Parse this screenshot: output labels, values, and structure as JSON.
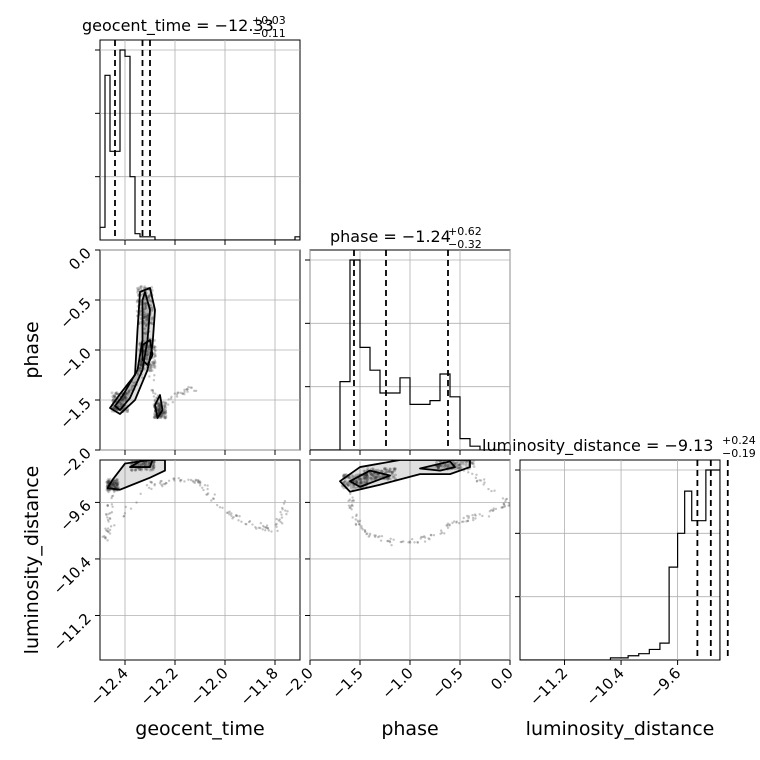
{
  "chart_data": {
    "type": "corner",
    "parameters": [
      "geocent_time",
      "phase",
      "luminosity_distance"
    ],
    "titles": [
      {
        "label": "geocent_time = −12.33",
        "sup": "+0.03",
        "sub": "−0.11"
      },
      {
        "label": "phase = −1.24",
        "sup": "+0.62",
        "sub": "−0.32"
      },
      {
        "label": "luminosity_distance = −9.13",
        "sup": "+0.24",
        "sub": "−0.19"
      }
    ],
    "axis_labels": {
      "x": [
        "geocent_time",
        "phase",
        "luminosity_distance"
      ],
      "y": [
        "phase",
        "luminosity_distance"
      ]
    },
    "ranges": {
      "geocent_time": [
        -12.5,
        -11.7
      ],
      "phase": [
        -2.0,
        0.0
      ],
      "luminosity_distance": [
        -11.83,
        -9.0
      ]
    },
    "ticks": {
      "geocent_time": [
        {
          "v": -12.4,
          "label": "−12.4"
        },
        {
          "v": -12.2,
          "label": "−12.2"
        },
        {
          "v": -12.0,
          "label": "−12.0"
        },
        {
          "v": -11.8,
          "label": "−11.8"
        }
      ],
      "phase": [
        {
          "v": -2.0,
          "label": "−2.0"
        },
        {
          "v": -1.5,
          "label": "−1.5"
        },
        {
          "v": -1.0,
          "label": "−1.0"
        },
        {
          "v": -0.5,
          "label": "−0.5"
        },
        {
          "v": 0.0,
          "label": "0.0"
        }
      ],
      "luminosity_distance": [
        {
          "v": -11.2,
          "label": "−11.2"
        },
        {
          "v": -10.4,
          "label": "−10.4"
        },
        {
          "v": -9.6,
          "label": "−9.6"
        }
      ]
    },
    "histograms": {
      "geocent_time": {
        "bin_edges": [
          -12.5,
          -12.48,
          -12.46,
          -12.44,
          -12.42,
          -12.4,
          -12.38,
          -12.36,
          -12.34,
          -12.32,
          -12.3,
          -12.28,
          -12.26,
          -12.24,
          -12.22,
          -12.2,
          -12.18,
          -12.16,
          -12.14,
          -12.12,
          -12.1,
          -12.08,
          -12.06,
          -12.04,
          -12.02,
          -12.0,
          -11.98,
          -11.96,
          -11.94,
          -11.92,
          -11.9,
          -11.88,
          -11.86,
          -11.84,
          -11.82,
          -11.8,
          -11.78,
          -11.76,
          -11.74,
          -11.72,
          -11.7
        ],
        "counts": [
          4,
          52,
          28,
          28,
          60,
          58,
          20,
          2,
          1,
          1,
          1,
          0,
          0,
          0,
          0,
          0,
          0,
          0,
          0,
          0,
          0,
          0,
          0,
          0,
          0,
          0,
          0,
          0,
          0,
          0,
          0,
          0,
          0,
          0,
          0,
          0,
          0,
          0,
          0,
          1
        ],
        "quantiles": [
          -12.44,
          -12.33,
          -12.3
        ]
      },
      "phase": {
        "bin_edges": [
          -2.0,
          -1.9,
          -1.8,
          -1.7,
          -1.6,
          -1.5,
          -1.4,
          -1.3,
          -1.2,
          -1.1,
          -1.0,
          -0.9,
          -0.8,
          -0.7,
          -0.6,
          -0.5,
          -0.4,
          -0.3,
          -0.2,
          -0.1,
          0.0
        ],
        "counts": [
          0,
          0,
          0,
          36,
          100,
          54,
          42,
          30,
          30,
          38,
          24,
          24,
          26,
          40,
          28,
          6,
          2,
          0,
          0,
          0
        ],
        "quantiles": [
          -1.56,
          -1.24,
          -0.62
        ]
      },
      "luminosity_distance": {
        "bin_edges": [
          -11.83,
          -11.1,
          -10.55,
          -10.3,
          -10.15,
          -10.0,
          -9.85,
          -9.72,
          -9.6,
          -9.5,
          -9.4,
          -9.3,
          -9.2,
          -9.1,
          -9.0
        ],
        "counts": [
          0,
          0,
          1,
          2,
          3,
          5,
          8,
          44,
          60,
          80,
          66,
          66,
          90,
          90
        ],
        "quantiles": [
          -9.32,
          -9.13,
          -8.89
        ]
      }
    },
    "pair_density": {
      "phase_vs_geocent_time": {
        "cores": [
          {
            "x": -12.42,
            "y": -1.52,
            "sx": 0.02,
            "sy": 0.06
          },
          {
            "x": -12.32,
            "y": -0.55,
            "sx": 0.02,
            "sy": 0.12
          },
          {
            "x": -12.31,
            "y": -1.05,
            "sx": 0.02,
            "sy": 0.1
          },
          {
            "x": -12.26,
            "y": -1.6,
            "sx": 0.015,
            "sy": 0.05
          }
        ],
        "trail": [
          [
            -12.42,
            -1.52
          ],
          [
            -12.38,
            -1.42
          ],
          [
            -12.34,
            -1.25
          ],
          [
            -12.31,
            -1.0
          ],
          [
            -12.32,
            -0.55
          ],
          [
            -12.29,
            -1.35
          ],
          [
            -12.26,
            -1.6
          ],
          [
            -12.2,
            -1.45
          ],
          [
            -12.12,
            -1.38
          ]
        ],
        "contours": [
          [
            [
              -12.46,
              -1.58
            ],
            [
              -12.42,
              -1.64
            ],
            [
              -12.36,
              -1.5
            ],
            [
              -12.31,
              -1.2
            ],
            [
              -12.29,
              -0.95
            ],
            [
              -12.28,
              -0.6
            ],
            [
              -12.3,
              -0.38
            ],
            [
              -12.34,
              -0.42
            ],
            [
              -12.35,
              -0.8
            ],
            [
              -12.36,
              -1.25
            ],
            [
              -12.42,
              -1.44
            ],
            [
              -12.46,
              -1.58
            ]
          ],
          [
            [
              -12.44,
              -1.56
            ],
            [
              -12.42,
              -1.6
            ],
            [
              -12.38,
              -1.48
            ],
            [
              -12.33,
              -1.2
            ],
            [
              -12.31,
              -0.9
            ],
            [
              -12.3,
              -0.6
            ],
            [
              -12.32,
              -0.42
            ],
            [
              -12.33,
              -0.5
            ],
            [
              -12.33,
              -0.9
            ],
            [
              -12.35,
              -1.2
            ],
            [
              -12.41,
              -1.46
            ],
            [
              -12.44,
              -1.56
            ]
          ],
          [
            [
              -12.31,
              -1.15
            ],
            [
              -12.29,
              -1.05
            ],
            [
              -12.3,
              -0.9
            ],
            [
              -12.33,
              -0.95
            ],
            [
              -12.33,
              -1.1
            ],
            [
              -12.31,
              -1.15
            ]
          ],
          [
            [
              -12.27,
              -1.68
            ],
            [
              -12.25,
              -1.6
            ],
            [
              -12.26,
              -1.45
            ],
            [
              -12.28,
              -1.55
            ],
            [
              -12.27,
              -1.68
            ]
          ]
        ]
      },
      "luminosity_distance_vs_geocent_time": {
        "cores": [
          {
            "x": -12.33,
            "y": -9.05,
            "sx": 0.03,
            "sy": 0.06
          },
          {
            "x": -12.45,
            "y": -9.35,
            "sx": 0.015,
            "sy": 0.05
          }
        ],
        "trail": [
          [
            -12.45,
            -9.35
          ],
          [
            -12.46,
            -9.7
          ],
          [
            -12.48,
            -10.1
          ],
          [
            -12.3,
            -9.35
          ],
          [
            -12.2,
            -9.3
          ],
          [
            -12.1,
            -9.3
          ],
          [
            -12.0,
            -9.75
          ],
          [
            -11.9,
            -9.9
          ],
          [
            -11.8,
            -10.0
          ],
          [
            -11.75,
            -9.6
          ]
        ],
        "contours": [
          [
            [
              -12.47,
              -9.4
            ],
            [
              -12.45,
              -9.28
            ],
            [
              -12.4,
              -9.05
            ],
            [
              -12.3,
              -9.0
            ],
            [
              -12.24,
              -9.0
            ],
            [
              -12.24,
              -9.15
            ],
            [
              -12.3,
              -9.25
            ],
            [
              -12.42,
              -9.42
            ],
            [
              -12.47,
              -9.4
            ]
          ],
          [
            [
              -12.38,
              -9.1
            ],
            [
              -12.33,
              -9.0
            ],
            [
              -12.29,
              -9.0
            ],
            [
              -12.3,
              -9.1
            ],
            [
              -12.38,
              -9.1
            ]
          ]
        ]
      },
      "luminosity_distance_vs_phase": {
        "cores": [
          {
            "x": -1.55,
            "y": -9.3,
            "sx": 0.08,
            "sy": 0.06
          },
          {
            "x": -0.55,
            "y": -9.05,
            "sx": 0.12,
            "sy": 0.05
          },
          {
            "x": -1.3,
            "y": -9.2,
            "sx": 0.1,
            "sy": 0.05
          }
        ],
        "trail": [
          [
            -1.6,
            -9.3
          ],
          [
            -1.58,
            -9.75
          ],
          [
            -1.45,
            -10.05
          ],
          [
            -1.1,
            -10.2
          ],
          [
            -0.8,
            -10.1
          ],
          [
            -0.5,
            -9.85
          ],
          [
            -0.2,
            -9.75
          ],
          [
            0.0,
            -9.6
          ],
          [
            -0.5,
            -9.1
          ]
        ],
        "contours": [
          [
            [
              -1.7,
              -9.3
            ],
            [
              -1.6,
              -9.45
            ],
            [
              -1.3,
              -9.35
            ],
            [
              -0.9,
              -9.2
            ],
            [
              -0.6,
              -9.2
            ],
            [
              -0.4,
              -9.1
            ],
            [
              -0.4,
              -9.0
            ],
            [
              -1.1,
              -9.0
            ],
            [
              -1.5,
              -9.1
            ],
            [
              -1.7,
              -9.3
            ]
          ],
          [
            [
              -1.6,
              -9.3
            ],
            [
              -1.5,
              -9.38
            ],
            [
              -1.35,
              -9.3
            ],
            [
              -1.2,
              -9.22
            ],
            [
              -1.4,
              -9.15
            ],
            [
              -1.6,
              -9.3
            ]
          ],
          [
            [
              -0.9,
              -9.12
            ],
            [
              -0.7,
              -9.15
            ],
            [
              -0.55,
              -9.1
            ],
            [
              -0.6,
              -9.02
            ],
            [
              -0.9,
              -9.12
            ]
          ]
        ]
      }
    },
    "grid": true
  }
}
